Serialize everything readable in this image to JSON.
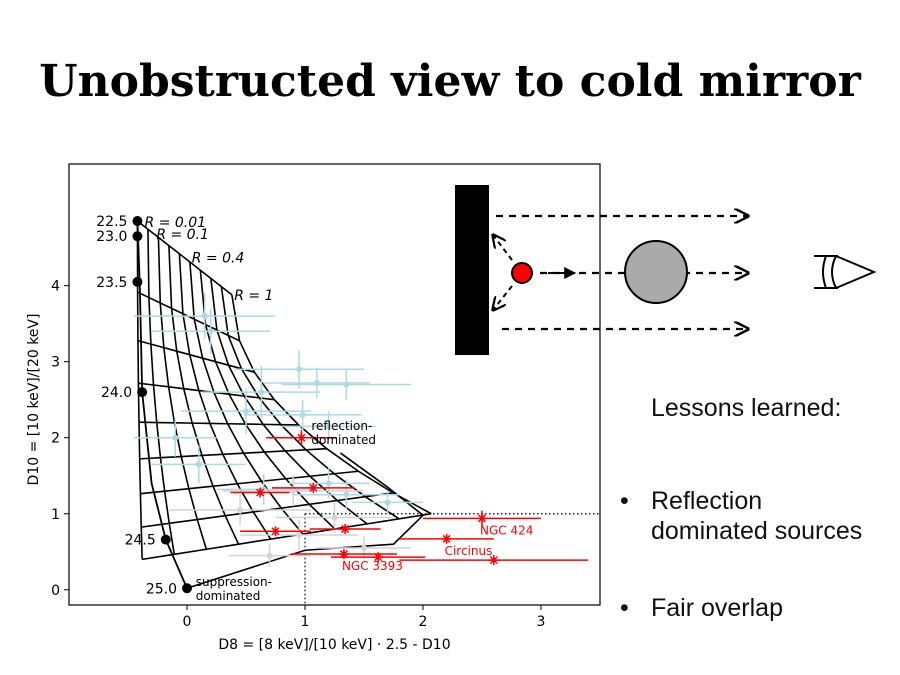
{
  "slide": {
    "title": "Unobstructed view to cold mirror",
    "lessons_heading": "Lessons learned:",
    "bullets": [
      "Reflection dominated sources",
      "Fair overlap"
    ],
    "bullet_symbol": "•"
  },
  "chart_data": {
    "type": "scatter",
    "xlabel": "D8 = [8 keV]/[10 keV] · 2.5 - D10",
    "ylabel": "D10 = [10 keV]/[20 keV]",
    "xlim": [
      -1.0,
      3.5
    ],
    "ylim": [
      -0.2,
      5.6
    ],
    "xticks": [
      0,
      1,
      2,
      3
    ],
    "yticks": [
      0,
      1,
      2,
      3,
      4
    ],
    "grid": false,
    "colors": {
      "model": "#000000",
      "sample": "#add8e6",
      "faint": "#d3d3d3",
      "highlight": "#ff0000"
    },
    "model_grid": {
      "nh_labels": [
        {
          "label": "22.5",
          "x": -0.42,
          "y": 4.85
        },
        {
          "label": "23.0",
          "x": -0.42,
          "y": 4.65
        },
        {
          "label": "23.5",
          "x": -0.42,
          "y": 4.05
        },
        {
          "label": "24.0",
          "x": -0.38,
          "y": 2.6
        },
        {
          "label": "24.5",
          "x": -0.18,
          "y": 0.66
        },
        {
          "label": "25.0",
          "x": 0.0,
          "y": 0.02
        }
      ],
      "r_labels": [
        {
          "label": "R = 0.01",
          "x": -0.36,
          "y": 4.84
        },
        {
          "label": "R = 0.1",
          "x": -0.26,
          "y": 4.68
        },
        {
          "label": "R = 0.4",
          "x": 0.04,
          "y": 4.37
        },
        {
          "label": "R = 1",
          "x": 0.4,
          "y": 3.88
        }
      ],
      "region_labels": [
        {
          "text": "reflection-\ndominated",
          "x": 1.02,
          "y": 2.1
        },
        {
          "text": "suppression-\ndominated",
          "x": 0.04,
          "y": 0.05
        }
      ]
    },
    "series": [
      {
        "name": "",
        "role": "sample",
        "points": [
          {
            "x": 0.15,
            "y": 3.6,
            "xerr": 0.6,
            "yerr": 0.3
          },
          {
            "x": 0.2,
            "y": 3.4,
            "xerr": 0.5,
            "yerr": 0.3
          },
          {
            "x": 0.95,
            "y": 2.9,
            "xerr": 0.55,
            "yerr": 0.25
          },
          {
            "x": 1.1,
            "y": 2.72,
            "xerr": 0.45,
            "yerr": 0.2
          },
          {
            "x": 1.35,
            "y": 2.7,
            "xerr": 0.55,
            "yerr": 0.2
          },
          {
            "x": 0.63,
            "y": 2.6,
            "xerr": 0.5,
            "yerr": 0.35
          },
          {
            "x": 0.5,
            "y": 2.35,
            "xerr": 0.55,
            "yerr": 0.3
          },
          {
            "x": 0.98,
            "y": 2.3,
            "xerr": 0.5,
            "yerr": 0.2
          },
          {
            "x": 1.2,
            "y": 2.15,
            "xerr": 0.4,
            "yerr": 0.2
          },
          {
            "x": -0.1,
            "y": 2.0,
            "xerr": 0.35,
            "yerr": 0.25
          },
          {
            "x": 0.1,
            "y": 1.65,
            "xerr": 0.4,
            "yerr": 0.25
          },
          {
            "x": 1.2,
            "y": 1.4,
            "xerr": 0.35,
            "yerr": 0.2
          },
          {
            "x": 1.35,
            "y": 1.25,
            "xerr": 0.45,
            "yerr": 0.2
          },
          {
            "x": 0.65,
            "y": 1.32,
            "xerr": 0.4,
            "yerr": 0.2
          },
          {
            "x": 1.7,
            "y": 1.15,
            "xerr": 0.3,
            "yerr": 0.15
          }
        ]
      },
      {
        "name": "",
        "role": "faint",
        "points": [
          {
            "x": 0.9,
            "y": 1.3,
            "xerr": 0.6,
            "yerr": 0.2
          },
          {
            "x": 0.45,
            "y": 1.05,
            "xerr": 0.6,
            "yerr": 0.2
          },
          {
            "x": 1.25,
            "y": 0.95,
            "xerr": 0.5,
            "yerr": 0.2
          },
          {
            "x": 0.95,
            "y": 0.72,
            "xerr": 0.5,
            "yerr": 0.2
          },
          {
            "x": 1.5,
            "y": 0.55,
            "xerr": 0.4,
            "yerr": 0.15
          },
          {
            "x": 0.7,
            "y": 0.45,
            "xerr": 0.35,
            "yerr": 0.15
          }
        ]
      },
      {
        "name": "",
        "role": "highlight",
        "points": [
          {
            "x": 0.97,
            "y": 2.0,
            "xerr": 0.3,
            "yerr": 0.1,
            "label": ""
          },
          {
            "x": 0.62,
            "y": 1.28,
            "xerr": 0.25,
            "yerr": 0.05,
            "label": ""
          },
          {
            "x": 1.07,
            "y": 1.34,
            "xerr": 0.35,
            "yerr": 0.05,
            "label": ""
          },
          {
            "x": 0.75,
            "y": 0.77,
            "xerr": 0.3,
            "yerr": 0.05,
            "label": ""
          },
          {
            "x": 1.34,
            "y": 0.8,
            "xerr": 0.3,
            "yerr": 0.05,
            "label": ""
          },
          {
            "x": 2.5,
            "y": 0.94,
            "xerr": 0.5,
            "yerr": 0.1,
            "label": "NGC 424"
          },
          {
            "x": 2.2,
            "y": 0.67,
            "xerr": 0.4,
            "yerr": 0.05,
            "label": "Circinus"
          },
          {
            "x": 1.33,
            "y": 0.47,
            "xerr": 0.45,
            "yerr": 0.05,
            "label": "NGC 3393"
          },
          {
            "x": 1.62,
            "y": 0.43,
            "xerr": 0.4,
            "yerr": 0.05,
            "label": ""
          },
          {
            "x": 2.6,
            "y": 0.39,
            "xerr": 0.8,
            "yerr": 0.05,
            "label": ""
          }
        ]
      }
    ],
    "reference_lines": {
      "x": 1.0,
      "y": 1.0,
      "style": "dotted"
    }
  },
  "schematic": {
    "colors": {
      "wall": "#000000",
      "source": "#ff0000",
      "obscurer": "#aaaaaa"
    },
    "icons": [
      "mirror-wall-icon",
      "source-dot-icon",
      "obscuring-cloud-icon",
      "eye-icon"
    ]
  }
}
